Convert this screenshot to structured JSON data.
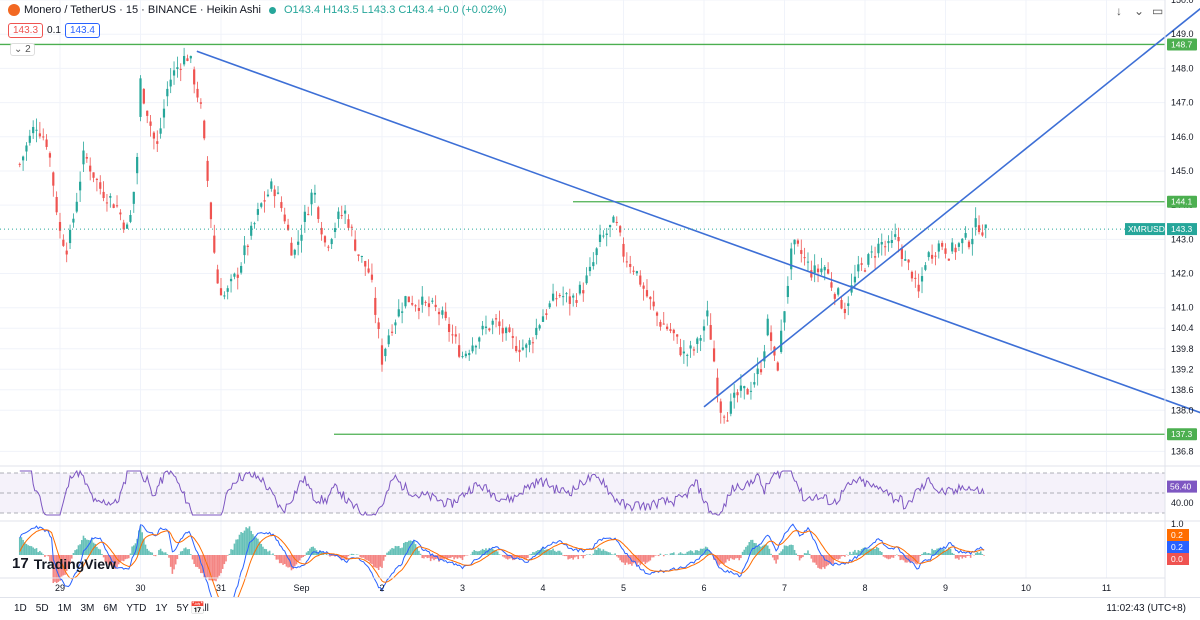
{
  "legend": {
    "symbol": "Monero / TetherUS · 15 · BINANCE · Heikin Ashi",
    "ohlc": "O143.4 H143.5 L143.3 C143.4 +0.0 (+0.02%)",
    "bid": "143.3",
    "spread": "0.1",
    "ask": "143.4",
    "indicators_collapsed": "2"
  },
  "bottom_bar": {
    "ranges": [
      "1D",
      "5D",
      "1M",
      "3M",
      "6M",
      "YTD",
      "1Y",
      "5Y",
      "All"
    ],
    "clock": "11:02:43 (UTC+8)"
  },
  "branding": "TradingView",
  "colors": {
    "up": "#26a69a",
    "down": "#ef5350",
    "trendline": "#3d6fd6",
    "level": "#4caf50",
    "rsi": "#7e57c2",
    "macd": "#2962ff",
    "signal": "#ff6d00"
  },
  "chart_data": [
    {
      "type": "candlestick",
      "style": "Heikin Ashi",
      "symbol": "XMRUSDT",
      "interval": "15",
      "x_ticks": [
        "29",
        "30",
        "31",
        "Sep",
        "2",
        "3",
        "4",
        "5",
        "6",
        "7",
        "8",
        "9",
        "10",
        "11"
      ],
      "y_ticks": [
        136.8,
        137.3,
        138.0,
        138.6,
        139.2,
        139.8,
        140.4,
        141.0,
        142.0,
        143.0,
        144.0,
        145.0,
        146.0,
        147.0,
        148.0,
        148.7,
        149.0,
        150.0
      ],
      "ylim": [
        136.4,
        150.0
      ],
      "price_path": [
        [
          28.5,
          145.2
        ],
        [
          28.7,
          146.4
        ],
        [
          28.85,
          145.8
        ],
        [
          29.0,
          143.2
        ],
        [
          29.1,
          142.7
        ],
        [
          29.3,
          145.5
        ],
        [
          29.5,
          144.5
        ],
        [
          29.7,
          144.0
        ],
        [
          29.85,
          143.2
        ],
        [
          29.95,
          145.0
        ],
        [
          30.0,
          147.6
        ],
        [
          30.2,
          145.6
        ],
        [
          30.35,
          147.6
        ],
        [
          30.5,
          148.2
        ],
        [
          30.6,
          148.4
        ],
        [
          30.75,
          146.8
        ],
        [
          30.85,
          144.3
        ],
        [
          30.95,
          141.8
        ],
        [
          31.05,
          141.3
        ],
        [
          31.2,
          142.0
        ],
        [
          31.35,
          143.0
        ],
        [
          31.5,
          144.0
        ],
        [
          31.65,
          144.6
        ],
        [
          31.8,
          143.6
        ],
        [
          31.9,
          142.5
        ],
        [
          32.0,
          143.3
        ],
        [
          32.15,
          144.5
        ],
        [
          32.3,
          142.8
        ],
        [
          32.45,
          143.6
        ],
        [
          32.55,
          143.8
        ],
        [
          32.7,
          142.6
        ],
        [
          32.85,
          142.0
        ],
        [
          33.0,
          139.5
        ],
        [
          33.1,
          140.4
        ],
        [
          33.3,
          141.3
        ],
        [
          33.5,
          141.1
        ],
        [
          33.7,
          140.9
        ],
        [
          33.85,
          140.3
        ],
        [
          34.0,
          139.6
        ],
        [
          34.2,
          140.2
        ],
        [
          34.4,
          140.6
        ],
        [
          34.6,
          140.0
        ],
        [
          34.8,
          139.8
        ],
        [
          35.0,
          140.8
        ],
        [
          35.2,
          141.4
        ],
        [
          35.35,
          141.2
        ],
        [
          35.5,
          141.6
        ],
        [
          35.6,
          142.1
        ],
        [
          35.7,
          142.9
        ],
        [
          35.8,
          143.2
        ],
        [
          35.9,
          143.5
        ],
        [
          36.0,
          142.6
        ],
        [
          36.15,
          142.1
        ],
        [
          36.3,
          141.3
        ],
        [
          36.45,
          140.6
        ],
        [
          36.6,
          140.3
        ],
        [
          36.75,
          139.6
        ],
        [
          36.9,
          139.8
        ],
        [
          37.05,
          140.8
        ],
        [
          37.2,
          138.1
        ],
        [
          37.3,
          137.9
        ],
        [
          37.4,
          138.4
        ],
        [
          37.55,
          138.6
        ],
        [
          37.7,
          139.2
        ],
        [
          37.8,
          140.6
        ],
        [
          37.9,
          139.0
        ],
        [
          38.0,
          141.0
        ],
        [
          38.1,
          142.8
        ],
        [
          38.2,
          142.6
        ],
        [
          38.35,
          142.0
        ],
        [
          38.5,
          142.2
        ],
        [
          38.6,
          141.6
        ],
        [
          38.75,
          141.0
        ],
        [
          38.9,
          142.0
        ],
        [
          39.05,
          142.4
        ],
        [
          39.2,
          142.9
        ],
        [
          39.3,
          142.7
        ],
        [
          39.4,
          143.1
        ],
        [
          39.5,
          142.3
        ],
        [
          39.6,
          142.0
        ],
        [
          39.65,
          141.2
        ],
        [
          39.75,
          142.4
        ],
        [
          39.85,
          142.7
        ],
        [
          39.95,
          142.9
        ],
        [
          40.05,
          142.6
        ],
        [
          40.2,
          142.9
        ],
        [
          40.3,
          143.0
        ],
        [
          40.4,
          143.5
        ],
        [
          40.5,
          143.2
        ]
      ],
      "horizontal_levels": [
        148.7,
        144.1,
        137.3
      ],
      "last_price_label": "XMRUSDT",
      "last_price": 143.3,
      "trendlines": [
        {
          "from": [
            30.7,
            148.5
          ],
          "to": [
            44.5,
            136.8
          ]
        },
        {
          "from": [
            37.0,
            138.1
          ],
          "to": [
            43.3,
            150.0
          ]
        }
      ]
    },
    {
      "type": "line",
      "indicator": "RSI",
      "levels": [
        70,
        50,
        30
      ],
      "y_ticks": [
        40.0
      ],
      "last_value": 56.4,
      "ylim": [
        25,
        75
      ]
    },
    {
      "type": "bar+line",
      "indicator": "MACD",
      "y_ticks": [
        1.0,
        0.0
      ],
      "last_values": [
        0.2,
        0.2,
        -0.0
      ]
    }
  ]
}
